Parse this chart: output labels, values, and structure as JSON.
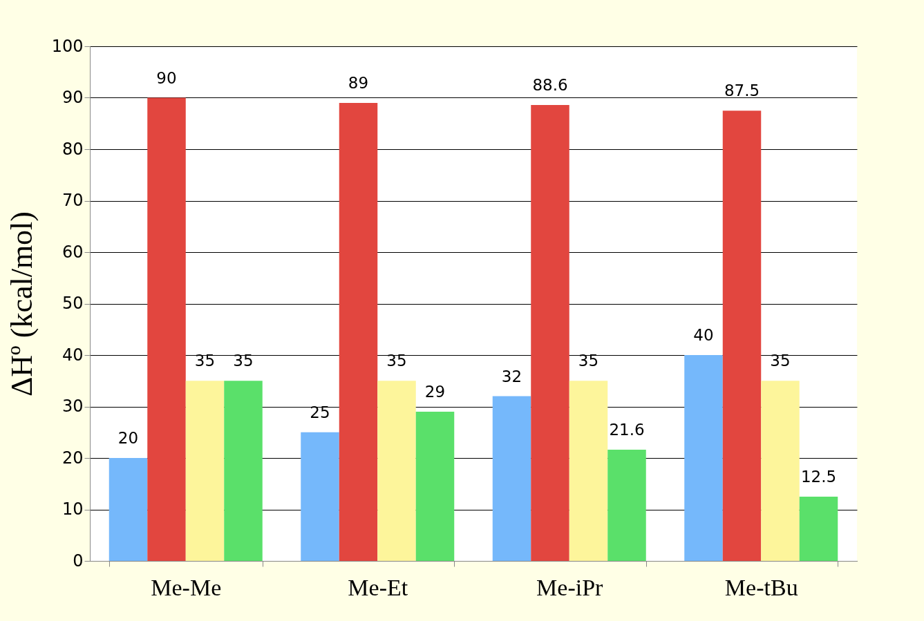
{
  "chart_data": {
    "type": "bar",
    "ylabel": "ΔHº (kcal/mol)",
    "categories": [
      "Me-Me",
      "Me-Et",
      "Me-iPr",
      "Me-tBu"
    ],
    "series": [
      {
        "color": "#75b8fb",
        "values": [
          20,
          25,
          32,
          40
        ]
      },
      {
        "color": "#e2463f",
        "values": [
          90,
          89,
          88.6,
          87.5
        ]
      },
      {
        "color": "#fdf59b",
        "values": [
          35,
          35,
          35,
          35
        ]
      },
      {
        "color": "#5ae06a",
        "values": [
          35,
          29,
          21.6,
          12.5
        ]
      }
    ],
    "ylim": [
      0,
      100
    ],
    "yticks": [
      0,
      10,
      20,
      30,
      40,
      50,
      60,
      70,
      80,
      90,
      100
    ],
    "grid": "y",
    "data_labels": true,
    "legend": false
  }
}
